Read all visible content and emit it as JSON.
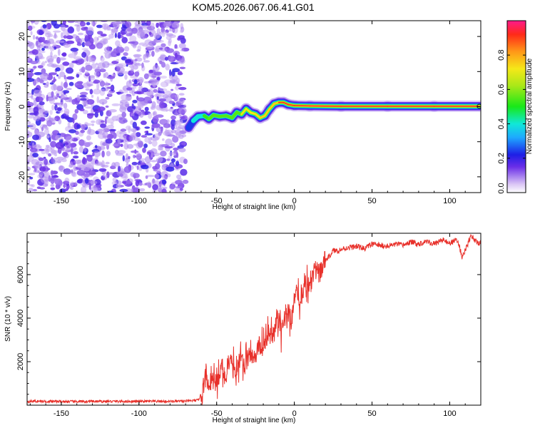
{
  "title": "KOM5.2026.067.06.41.G01",
  "chart_data": [
    {
      "type": "heatmap",
      "name": "spectrogram",
      "xlabel": "Height of straight line (km)",
      "ylabel": "Frequency (Hz)",
      "xlim": [
        -172,
        120
      ],
      "ylim": [
        -24.5,
        24.5
      ],
      "x_ticks": [
        -150,
        -100,
        -50,
        0,
        50,
        100
      ],
      "y_ticks": [
        -20,
        -10,
        0,
        10,
        20
      ],
      "noise_region": {
        "x_range": [
          -172,
          -70
        ],
        "description_level": "low amplitude, scattered"
      },
      "signal_track": {
        "x": [
          -68,
          -65,
          -62,
          -58,
          -55,
          -52,
          -48,
          -44,
          -40,
          -37,
          -34,
          -31,
          -28,
          -25,
          -22,
          -19,
          -16,
          -13,
          -10,
          -7,
          -4,
          0,
          10,
          30,
          60,
          90,
          119
        ],
        "y": [
          -6,
          -4,
          -2.8,
          -2.6,
          -3.5,
          -2.4,
          -2.8,
          -2.6,
          -3.2,
          -1.6,
          -2.2,
          -0.6,
          -1.7,
          -2.1,
          -3.2,
          -2.6,
          -0.7,
          0.8,
          1.2,
          1.2,
          0.6,
          0.3,
          0.2,
          0.1,
          0.1,
          0.1,
          0.1
        ],
        "amplitude": [
          0.3,
          0.4,
          0.45,
          0.5,
          0.55,
          0.55,
          0.6,
          0.6,
          0.65,
          0.65,
          0.7,
          0.7,
          0.72,
          0.72,
          0.75,
          0.78,
          0.8,
          0.85,
          0.9,
          0.92,
          0.95,
          0.98,
          1.0,
          1.0,
          1.0,
          1.0,
          1.0
        ]
      }
    },
    {
      "type": "line",
      "name": "snr",
      "xlabel": "Height of straight line (km)",
      "ylabel": "SNR (10 * v/v)",
      "xlim": [
        -172,
        120
      ],
      "ylim": [
        0,
        7900
      ],
      "x_ticks": [
        -150,
        -100,
        -50,
        0,
        50,
        100
      ],
      "y_ticks": [
        2000,
        4000,
        6000
      ],
      "series": [
        {
          "name": "SNR",
          "color": "#e8302a",
          "x": [
            -172,
            -160,
            -140,
            -120,
            -100,
            -80,
            -70,
            -62,
            -59,
            -57,
            -55,
            -52,
            -50,
            -47,
            -44,
            -41,
            -38,
            -35,
            -32,
            -29,
            -26,
            -23,
            -20,
            -17,
            -14,
            -11,
            -8,
            -5,
            -2,
            1,
            4,
            7,
            10,
            13,
            16,
            19,
            22,
            25,
            28,
            32,
            36,
            40,
            45,
            50,
            55,
            60,
            65,
            70,
            75,
            80,
            85,
            90,
            95,
            100,
            105,
            108,
            111,
            114,
            117,
            120
          ],
          "y": [
            160,
            150,
            140,
            150,
            150,
            150,
            160,
            200,
            600,
            1800,
            700,
            1200,
            900,
            1600,
            1300,
            1900,
            1500,
            2200,
            1700,
            2400,
            2000,
            2800,
            2500,
            3300,
            3000,
            3900,
            3400,
            4500,
            3900,
            5200,
            4400,
            5800,
            5300,
            6300,
            6000,
            6600,
            6800,
            7100,
            7100,
            7200,
            7250,
            7300,
            7200,
            7400,
            7350,
            7300,
            7400,
            7350,
            7500,
            7400,
            7550,
            7400,
            7600,
            7450,
            7600,
            6800,
            7300,
            7800,
            7500,
            7400
          ]
        }
      ]
    },
    {
      "type": "colorbar",
      "name": "colorbar",
      "label": "Normalized spectral amplitude",
      "range": [
        0.0,
        1.0
      ],
      "ticks": [
        "0.0",
        "0.2",
        "0.4",
        "0.6",
        "0.8"
      ],
      "tick_values": [
        0.0,
        0.2,
        0.4,
        0.6,
        0.8
      ]
    }
  ]
}
